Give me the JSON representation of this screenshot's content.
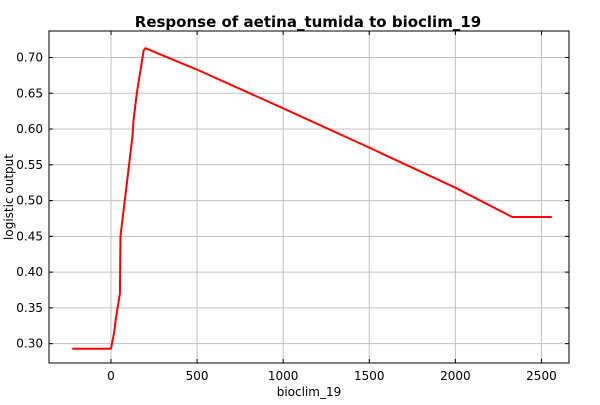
{
  "chart_data": {
    "type": "line",
    "title": "Response of aetina_tumida to bioclim_19",
    "xlabel": "bioclim_19",
    "ylabel": "logistic output",
    "xlim": [
      -360,
      2660
    ],
    "ylim": [
      0.273,
      0.737
    ],
    "xticks": [
      0,
      500,
      1000,
      1500,
      2000,
      2500
    ],
    "yticks": [
      0.3,
      0.35,
      0.4,
      0.45,
      0.5,
      0.55,
      0.6,
      0.65,
      0.7
    ],
    "xtick_labels": [
      "0",
      "500",
      "1000",
      "1500",
      "2000",
      "2500"
    ],
    "ytick_labels": [
      "0.30",
      "0.35",
      "0.40",
      "0.45",
      "0.50",
      "0.55",
      "0.60",
      "0.65",
      "0.70"
    ],
    "grid": true,
    "series": [
      {
        "color": "#ff0000",
        "x": [
          -225,
          0,
          10,
          20,
          28,
          35,
          45,
          52,
          55,
          75,
          100,
          125,
          130,
          150,
          190,
          200,
          500,
          1000,
          1500,
          2000,
          2330,
          2560
        ],
        "y": [
          0.293,
          0.293,
          0.305,
          0.318,
          0.335,
          0.345,
          0.36,
          0.37,
          0.45,
          0.49,
          0.54,
          0.59,
          0.61,
          0.65,
          0.71,
          0.713,
          0.683,
          0.629,
          0.574,
          0.518,
          0.477,
          0.477
        ]
      }
    ]
  }
}
